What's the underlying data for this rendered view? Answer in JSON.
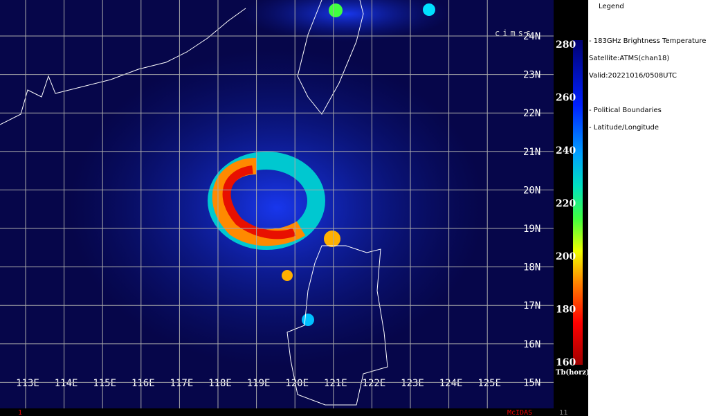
{
  "map": {
    "lon_labels": [
      "113E",
      "114E",
      "115E",
      "116E",
      "117E",
      "118E",
      "119E",
      "120E",
      "121E",
      "122E",
      "123E",
      "124E",
      "125E"
    ],
    "lat_labels": [
      "24N",
      "23N",
      "22N",
      "21N",
      "20N",
      "19N",
      "18N",
      "17N",
      "16N",
      "15N"
    ],
    "logo": "cimss"
  },
  "colorbar": {
    "range": [
      160,
      280
    ],
    "ticks": [
      280,
      260,
      240,
      220,
      200,
      180,
      160
    ],
    "label": "Tb(horz)"
  },
  "legend": {
    "title": "Legend",
    "lines": [
      "-  183GHz Brightness Temperature",
      "Satellite:ATMS(chan18)",
      "Valid:20221016/0508UTC",
      "-  Political Boundaries",
      "-  Latitude/Longitude"
    ]
  },
  "footer": {
    "left": "1",
    "center": "McIDAS",
    "right": "11"
  }
}
